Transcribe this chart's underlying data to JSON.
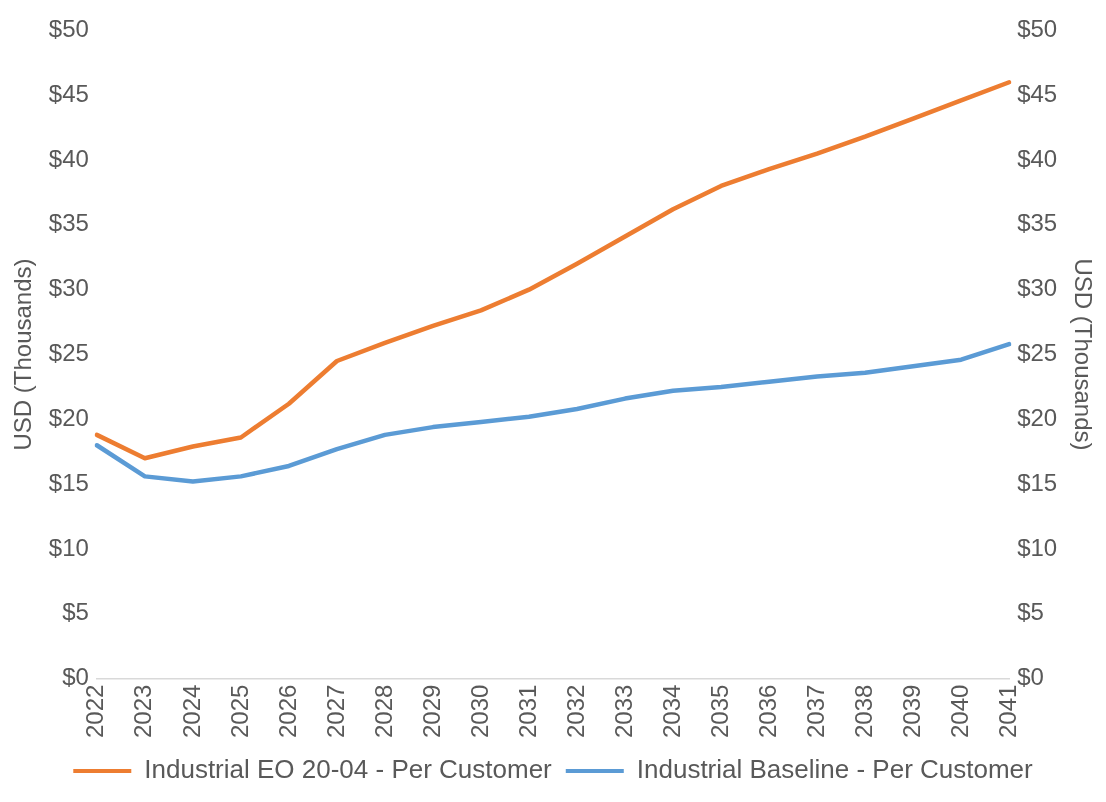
{
  "chart_data": {
    "type": "line",
    "ylabel": "USD (Thousands)",
    "y2label": "USD (Thousands)",
    "categories": [
      "2022",
      "2023",
      "2024",
      "2025",
      "2026",
      "2027",
      "2028",
      "2029",
      "2030",
      "2031",
      "2032",
      "2033",
      "2034",
      "2035",
      "2036",
      "2037",
      "2038",
      "2039",
      "2040",
      "2041"
    ],
    "series": [
      {
        "name": "Industrial EO 20-04 - Per Customer",
        "color": "#ed7d31",
        "values": [
          18.8,
          17.0,
          17.9,
          18.6,
          21.2,
          24.5,
          25.9,
          27.2,
          28.4,
          30.0,
          32.0,
          34.1,
          36.2,
          38.0,
          39.3,
          40.5,
          41.8,
          43.2,
          44.6,
          46.0
        ]
      },
      {
        "name": "Industrial Baseline - Per Customer",
        "color": "#5b9bd5",
        "values": [
          18.0,
          15.6,
          15.2,
          15.6,
          16.4,
          17.7,
          18.8,
          19.4,
          19.8,
          20.2,
          20.8,
          21.6,
          22.2,
          22.5,
          22.9,
          23.3,
          23.6,
          24.1,
          24.6,
          25.8
        ]
      }
    ],
    "ylim": [
      0,
      50
    ],
    "yticks": [
      {
        "value": 0,
        "label": "$0"
      },
      {
        "value": 5,
        "label": "$5"
      },
      {
        "value": 10,
        "label": "$10"
      },
      {
        "value": 15,
        "label": "$15"
      },
      {
        "value": 20,
        "label": "$20"
      },
      {
        "value": 25,
        "label": "$25"
      },
      {
        "value": 30,
        "label": "$30"
      },
      {
        "value": 35,
        "label": "$35"
      },
      {
        "value": 40,
        "label": "$40"
      },
      {
        "value": 45,
        "label": "$45"
      },
      {
        "value": 50,
        "label": "$50"
      }
    ],
    "y2lim": [
      0,
      50
    ],
    "y2ticks": [
      {
        "value": 0,
        "label": "$0"
      },
      {
        "value": 5,
        "label": "$5"
      },
      {
        "value": 10,
        "label": "$10"
      },
      {
        "value": 15,
        "label": "$15"
      },
      {
        "value": 20,
        "label": "$20"
      },
      {
        "value": 25,
        "label": "$25"
      },
      {
        "value": 30,
        "label": "$30"
      },
      {
        "value": 35,
        "label": "$35"
      },
      {
        "value": 40,
        "label": "$40"
      },
      {
        "value": 45,
        "label": "$45"
      },
      {
        "value": 50,
        "label": "$50"
      }
    ],
    "grid": false,
    "legend": "bottom",
    "marker": "none",
    "line_style": "solid"
  }
}
